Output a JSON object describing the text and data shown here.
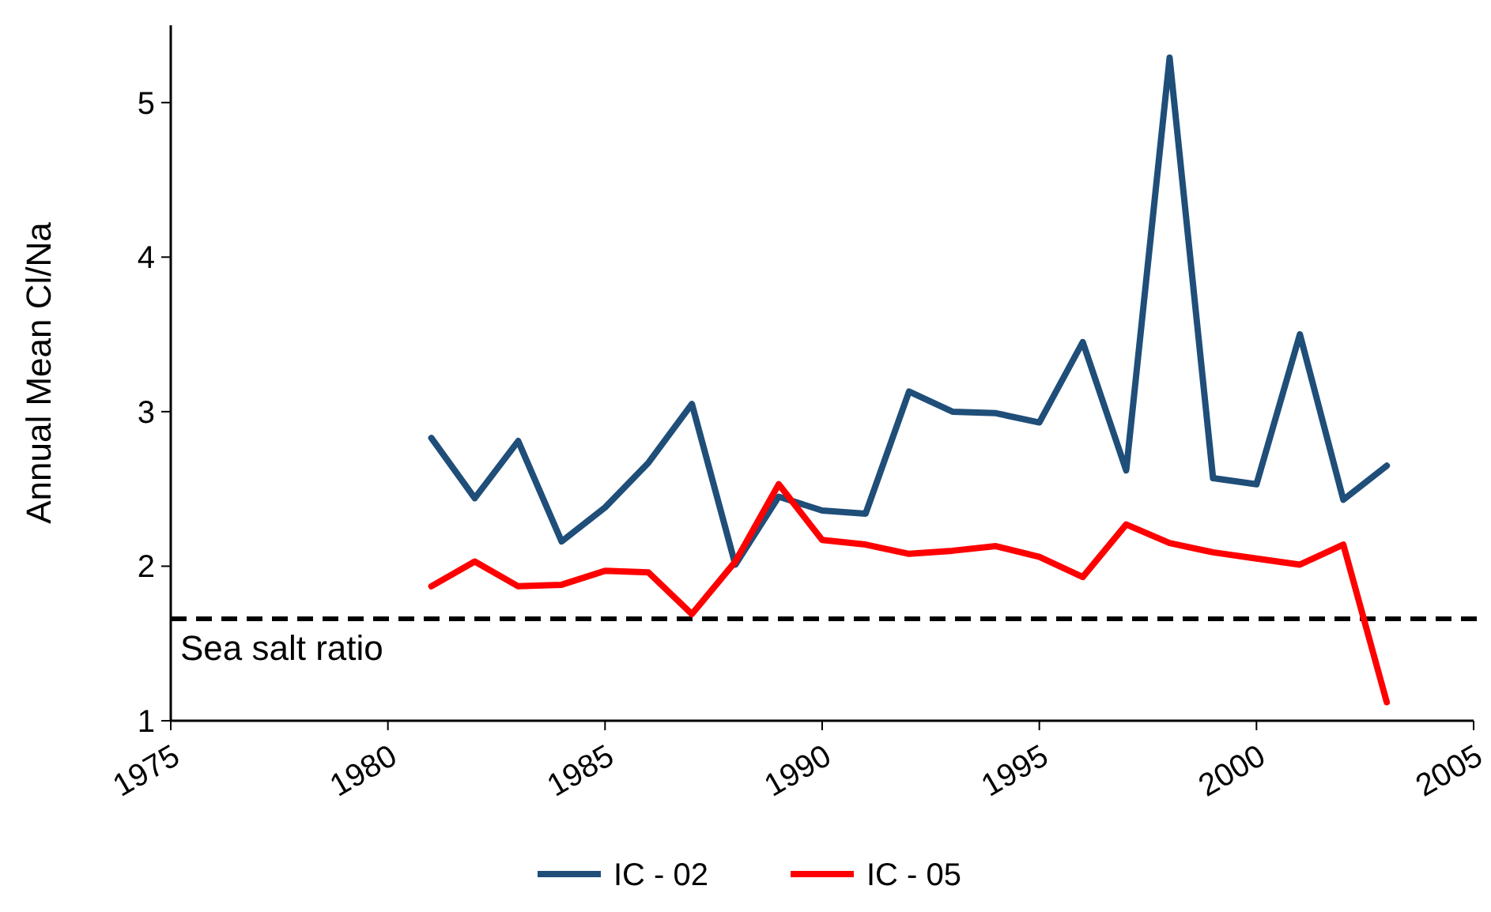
{
  "chart_data": {
    "type": "line",
    "ylabel": "Annual Mean Cl/Na",
    "x": [
      1981,
      1982,
      1983,
      1984,
      1985,
      1986,
      1987,
      1988,
      1989,
      1990,
      1991,
      1992,
      1993,
      1994,
      1995,
      1996,
      1997,
      1998,
      1999,
      2000,
      2001,
      2002,
      2003
    ],
    "series": [
      {
        "name": "IC - 02",
        "color": "#1f4e79",
        "values": [
          2.83,
          2.44,
          2.81,
          2.16,
          2.38,
          2.67,
          3.05,
          2.01,
          2.45,
          2.36,
          2.34,
          3.13,
          3.0,
          2.99,
          2.93,
          3.45,
          2.62,
          5.29,
          2.57,
          2.53,
          3.5,
          2.43,
          2.65
        ]
      },
      {
        "name": "IC - 05",
        "color": "#ff0000",
        "values": [
          1.87,
          2.03,
          1.87,
          1.88,
          1.97,
          1.96,
          1.69,
          2.03,
          2.53,
          2.17,
          2.14,
          2.08,
          2.1,
          2.13,
          2.06,
          1.93,
          2.27,
          2.15,
          2.09,
          2.05,
          2.01,
          2.14,
          1.12
        ]
      }
    ],
    "xlim": [
      1975,
      2005
    ],
    "xticks": [
      1975,
      1980,
      1985,
      1990,
      1995,
      2000,
      2005
    ],
    "ylim": [
      1,
      5.5
    ],
    "yticks": [
      1,
      2,
      3,
      4,
      5
    ],
    "ref_lines": [
      {
        "axis": "y",
        "value": 1.66,
        "label": "Sea salt ratio",
        "color": "#000000",
        "line_style": "dashed"
      }
    ],
    "grid": false,
    "legend": "bottom",
    "marker": "none",
    "line_style": "solid"
  }
}
